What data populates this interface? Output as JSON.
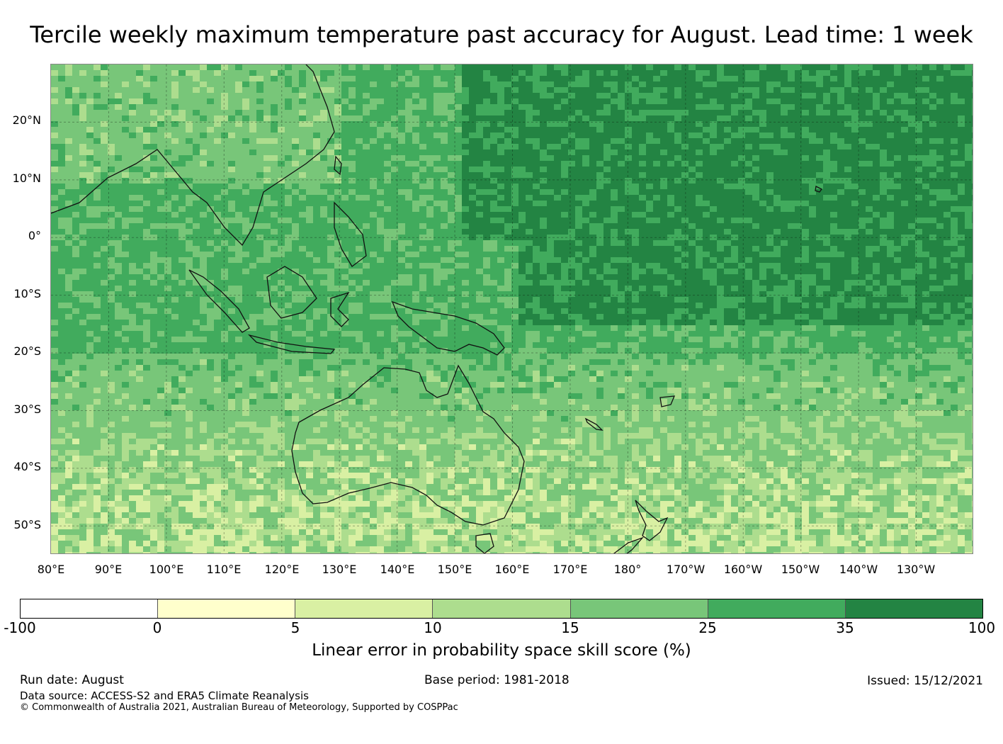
{
  "title": "Tercile weekly maximum temperature past accuracy for August. Lead time: 1 week",
  "map": {
    "lat_labels": [
      "20°N",
      "10°N",
      "0°",
      "10°S",
      "20°S",
      "30°S",
      "40°S",
      "50°S"
    ],
    "lon_labels": [
      "80°E",
      "90°E",
      "100°E",
      "110°E",
      "120°E",
      "130°E",
      "140°E",
      "150°E",
      "160°E",
      "170°E",
      "180°",
      "170°W",
      "160°W",
      "150°W",
      "140°W",
      "130°W"
    ],
    "lat_range": [
      -55,
      30
    ],
    "lon_range": [
      80,
      240
    ]
  },
  "colorbar": {
    "ticks": [
      "-100",
      "0",
      "5",
      "10",
      "15",
      "25",
      "35",
      "100"
    ],
    "colors": [
      "#ffffff",
      "#ffffcc",
      "#d9f0a3",
      "#addd8e",
      "#78c679",
      "#41ab5d",
      "#238443"
    ],
    "label": "Linear error in probability space skill score (%)"
  },
  "footer": {
    "run_date": "Run date: August",
    "base_period": "Base period: 1981-2018",
    "issued": "Issued: 15/12/2021",
    "data_source": "Data source: ACCESS-S2 and ERA5 Climate Reanalysis",
    "copyright": "© Commonwealth of Australia 2021, Australian Bureau of Meteorology, Supported by COSPPac"
  }
}
